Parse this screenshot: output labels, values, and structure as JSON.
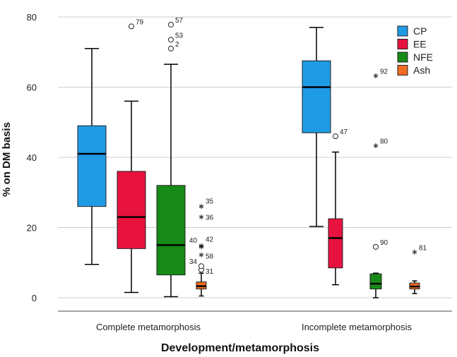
{
  "chart_data": {
    "type": "boxplot",
    "title": "",
    "xlabel": "Development/metamorphosis",
    "ylabel": "% on DM basis",
    "ylim": [
      0,
      80
    ],
    "yticks": [
      "0",
      "20",
      "40",
      "60",
      "80"
    ],
    "grid": true,
    "legend_position": "top-right",
    "categories": [
      "Complete metamorphosis",
      "Incomplete metamorphosis"
    ],
    "series": [
      {
        "name": "CP",
        "color": "#1f9be6",
        "boxes": [
          {
            "min": 9.5,
            "q1": 26,
            "median": 41,
            "q3": 49,
            "max": 71,
            "outliers": []
          },
          {
            "min": 20.3,
            "q1": 47,
            "median": 60,
            "q3": 67.5,
            "max": 77,
            "outliers": []
          }
        ]
      },
      {
        "name": "EE",
        "color": "#e8123f",
        "boxes": [
          {
            "min": 1.5,
            "q1": 14,
            "median": 23,
            "q3": 36,
            "max": 56,
            "outliers": [
              {
                "value": 77.3,
                "marker": "circle",
                "label": "79"
              }
            ]
          },
          {
            "min": 3.7,
            "q1": 8.5,
            "median": 17,
            "q3": 22.5,
            "max": 41.5,
            "outliers": [
              {
                "value": 46,
                "marker": "circle",
                "label": "47"
              }
            ]
          }
        ]
      },
      {
        "name": "NFE",
        "color": "#178a17",
        "boxes": [
          {
            "min": 0.3,
            "q1": 6.5,
            "median": 15,
            "q3": 32,
            "max": 66.5,
            "outliers": [
              {
                "value": 77.8,
                "marker": "circle",
                "label": "57"
              },
              {
                "value": 73.5,
                "marker": "circle",
                "label": "53"
              },
              {
                "value": 71,
                "marker": "circle",
                "label": "2"
              }
            ]
          },
          {
            "min": 0,
            "q1": 2.5,
            "median": 4,
            "q3": 6.8,
            "max": 7,
            "outliers": [
              {
                "value": 14.5,
                "marker": "circle",
                "label": "90"
              },
              {
                "value": 43.3,
                "marker": "star",
                "label": "80"
              },
              {
                "value": 63.2,
                "marker": "star",
                "label": "92"
              }
            ]
          }
        ]
      },
      {
        "name": "Ash",
        "color": "#f26b22",
        "boxes": [
          {
            "min": 0.5,
            "q1": 2.5,
            "median": 3.3,
            "q3": 4.5,
            "max": 7,
            "outliers": [
              {
                "value": 8,
                "marker": "circle",
                "label": "31"
              },
              {
                "value": 9,
                "marker": "circle",
                "label": "34"
              },
              {
                "value": 12.2,
                "marker": "star",
                "label": "58"
              },
              {
                "value": 14.5,
                "marker": "star",
                "label": "40"
              },
              {
                "value": 14.8,
                "marker": "star",
                "label": "42"
              },
              {
                "value": 23,
                "marker": "star",
                "label": "36"
              },
              {
                "value": 26,
                "marker": "star",
                "label": "35"
              }
            ]
          },
          {
            "min": 1.2,
            "q1": 2.5,
            "median": 3.2,
            "q3": 4.2,
            "max": 4.8,
            "outliers": [
              {
                "value": 13,
                "marker": "star",
                "label": "81"
              }
            ]
          }
        ]
      }
    ]
  }
}
